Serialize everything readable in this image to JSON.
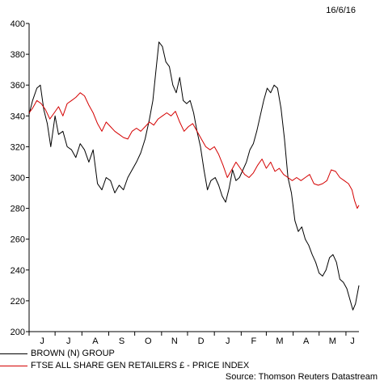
{
  "chart_data": {
    "type": "line",
    "date_stamp": "16/6/16",
    "source": "Source: Thomson Reuters Datastream",
    "xlabel": "",
    "ylabel": "",
    "ylim": [
      200,
      400
    ],
    "yticks": [
      200,
      220,
      240,
      260,
      280,
      300,
      320,
      340,
      360,
      380,
      400
    ],
    "xlim": [
      "2015-06-01",
      "2016-06-16"
    ],
    "month_labels": [
      "J",
      "J",
      "A",
      "S",
      "O",
      "N",
      "D",
      "J",
      "F",
      "M",
      "A",
      "M",
      "J"
    ],
    "grid": false,
    "legend_position": "bottom-left",
    "series": [
      {
        "name": "BROWN (N) GROUP",
        "color": "#000000",
        "points": [
          [
            "2015-06-01",
            341
          ],
          [
            "2015-06-05",
            350
          ],
          [
            "2015-06-10",
            358
          ],
          [
            "2015-06-14",
            360
          ],
          [
            "2015-06-18",
            344
          ],
          [
            "2015-06-22",
            335
          ],
          [
            "2015-06-26",
            320
          ],
          [
            "2015-07-01",
            340
          ],
          [
            "2015-07-05",
            328
          ],
          [
            "2015-07-10",
            330
          ],
          [
            "2015-07-15",
            320
          ],
          [
            "2015-07-20",
            318
          ],
          [
            "2015-07-25",
            313
          ],
          [
            "2015-07-30",
            322
          ],
          [
            "2015-08-04",
            318
          ],
          [
            "2015-08-09",
            310
          ],
          [
            "2015-08-14",
            318
          ],
          [
            "2015-08-19",
            296
          ],
          [
            "2015-08-24",
            292
          ],
          [
            "2015-08-29",
            300
          ],
          [
            "2015-09-03",
            298
          ],
          [
            "2015-09-08",
            290
          ],
          [
            "2015-09-13",
            295
          ],
          [
            "2015-09-18",
            292
          ],
          [
            "2015-09-23",
            300
          ],
          [
            "2015-09-28",
            305
          ],
          [
            "2015-10-03",
            310
          ],
          [
            "2015-10-08",
            316
          ],
          [
            "2015-10-13",
            325
          ],
          [
            "2015-10-18",
            338
          ],
          [
            "2015-10-22",
            350
          ],
          [
            "2015-10-26",
            372
          ],
          [
            "2015-10-29",
            388
          ],
          [
            "2015-11-02",
            385
          ],
          [
            "2015-11-06",
            375
          ],
          [
            "2015-11-10",
            372
          ],
          [
            "2015-11-14",
            360
          ],
          [
            "2015-11-18",
            355
          ],
          [
            "2015-11-22",
            365
          ],
          [
            "2015-11-26",
            350
          ],
          [
            "2015-11-30",
            348
          ],
          [
            "2015-12-04",
            350
          ],
          [
            "2015-12-08",
            342
          ],
          [
            "2015-12-12",
            330
          ],
          [
            "2015-12-16",
            320
          ],
          [
            "2015-12-20",
            305
          ],
          [
            "2015-12-24",
            292
          ],
          [
            "2015-12-28",
            298
          ],
          [
            "2016-01-02",
            300
          ],
          [
            "2016-01-06",
            295
          ],
          [
            "2016-01-10",
            288
          ],
          [
            "2016-01-14",
            284
          ],
          [
            "2016-01-18",
            293
          ],
          [
            "2016-01-22",
            305
          ],
          [
            "2016-01-26",
            298
          ],
          [
            "2016-01-30",
            300
          ],
          [
            "2016-02-03",
            305
          ],
          [
            "2016-02-07",
            310
          ],
          [
            "2016-02-11",
            318
          ],
          [
            "2016-02-15",
            322
          ],
          [
            "2016-02-19",
            330
          ],
          [
            "2016-02-23",
            340
          ],
          [
            "2016-02-27",
            350
          ],
          [
            "2016-03-02",
            358
          ],
          [
            "2016-03-06",
            355
          ],
          [
            "2016-03-10",
            360
          ],
          [
            "2016-03-14",
            358
          ],
          [
            "2016-03-18",
            345
          ],
          [
            "2016-03-22",
            325
          ],
          [
            "2016-03-26",
            300
          ],
          [
            "2016-03-30",
            290
          ],
          [
            "2016-04-03",
            272
          ],
          [
            "2016-04-07",
            265
          ],
          [
            "2016-04-11",
            268
          ],
          [
            "2016-04-15",
            260
          ],
          [
            "2016-04-19",
            256
          ],
          [
            "2016-04-23",
            250
          ],
          [
            "2016-04-27",
            245
          ],
          [
            "2016-05-01",
            238
          ],
          [
            "2016-05-05",
            236
          ],
          [
            "2016-05-09",
            240
          ],
          [
            "2016-05-13",
            248
          ],
          [
            "2016-05-17",
            250
          ],
          [
            "2016-05-21",
            245
          ],
          [
            "2016-05-25",
            234
          ],
          [
            "2016-05-29",
            232
          ],
          [
            "2016-06-02",
            228
          ],
          [
            "2016-06-06",
            220
          ],
          [
            "2016-06-09",
            214
          ],
          [
            "2016-06-12",
            218
          ],
          [
            "2016-06-16",
            230
          ]
        ]
      },
      {
        "name": "FTSE ALL SHARE GEN RETAILERS £ - PRICE INDEX",
        "color": "#d40000",
        "points": [
          [
            "2015-06-01",
            342
          ],
          [
            "2015-06-05",
            345
          ],
          [
            "2015-06-10",
            350
          ],
          [
            "2015-06-15",
            348
          ],
          [
            "2015-06-20",
            344
          ],
          [
            "2015-06-25",
            338
          ],
          [
            "2015-06-30",
            342
          ],
          [
            "2015-07-05",
            346
          ],
          [
            "2015-07-10",
            340
          ],
          [
            "2015-07-15",
            348
          ],
          [
            "2015-07-20",
            350
          ],
          [
            "2015-07-25",
            352
          ],
          [
            "2015-07-30",
            355
          ],
          [
            "2015-08-04",
            353
          ],
          [
            "2015-08-09",
            347
          ],
          [
            "2015-08-14",
            342
          ],
          [
            "2015-08-19",
            335
          ],
          [
            "2015-08-24",
            330
          ],
          [
            "2015-08-29",
            336
          ],
          [
            "2015-09-03",
            333
          ],
          [
            "2015-09-08",
            330
          ],
          [
            "2015-09-13",
            328
          ],
          [
            "2015-09-18",
            326
          ],
          [
            "2015-09-23",
            325
          ],
          [
            "2015-09-28",
            330
          ],
          [
            "2015-10-03",
            332
          ],
          [
            "2015-10-08",
            330
          ],
          [
            "2015-10-13",
            333
          ],
          [
            "2015-10-18",
            336
          ],
          [
            "2015-10-23",
            334
          ],
          [
            "2015-10-28",
            338
          ],
          [
            "2015-11-02",
            340
          ],
          [
            "2015-11-07",
            342
          ],
          [
            "2015-11-12",
            340
          ],
          [
            "2015-11-17",
            343
          ],
          [
            "2015-11-22",
            336
          ],
          [
            "2015-11-27",
            330
          ],
          [
            "2015-12-02",
            333
          ],
          [
            "2015-12-07",
            335
          ],
          [
            "2015-12-12",
            330
          ],
          [
            "2015-12-17",
            325
          ],
          [
            "2015-12-22",
            320
          ],
          [
            "2015-12-27",
            318
          ],
          [
            "2016-01-01",
            320
          ],
          [
            "2016-01-06",
            315
          ],
          [
            "2016-01-11",
            308
          ],
          [
            "2016-01-16",
            300
          ],
          [
            "2016-01-21",
            305
          ],
          [
            "2016-01-26",
            310
          ],
          [
            "2016-01-31",
            306
          ],
          [
            "2016-02-05",
            302
          ],
          [
            "2016-02-10",
            300
          ],
          [
            "2016-02-15",
            303
          ],
          [
            "2016-02-20",
            308
          ],
          [
            "2016-02-25",
            312
          ],
          [
            "2016-03-01",
            306
          ],
          [
            "2016-03-06",
            310
          ],
          [
            "2016-03-11",
            304
          ],
          [
            "2016-03-16",
            306
          ],
          [
            "2016-03-21",
            302
          ],
          [
            "2016-03-26",
            300
          ],
          [
            "2016-03-31",
            298
          ],
          [
            "2016-04-05",
            300
          ],
          [
            "2016-04-10",
            298
          ],
          [
            "2016-04-15",
            300
          ],
          [
            "2016-04-20",
            302
          ],
          [
            "2016-04-25",
            296
          ],
          [
            "2016-04-30",
            295
          ],
          [
            "2016-05-05",
            296
          ],
          [
            "2016-05-10",
            298
          ],
          [
            "2016-05-15",
            305
          ],
          [
            "2016-05-20",
            304
          ],
          [
            "2016-05-25",
            300
          ],
          [
            "2016-05-30",
            298
          ],
          [
            "2016-06-04",
            296
          ],
          [
            "2016-06-08",
            292
          ],
          [
            "2016-06-11",
            285
          ],
          [
            "2016-06-14",
            280
          ],
          [
            "2016-06-16",
            282
          ]
        ]
      }
    ]
  }
}
